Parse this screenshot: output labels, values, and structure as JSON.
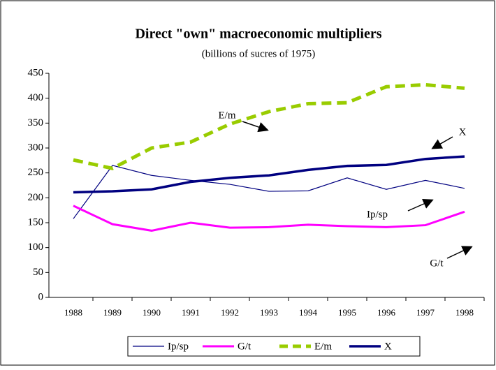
{
  "chart_data": {
    "type": "line",
    "title": "Direct \"own\" macroeconomic multipliers",
    "subtitle": "(billions of sucres of 1975)",
    "categories": [
      "1988",
      "1989",
      "1990",
      "1991",
      "1992",
      "1993",
      "1994",
      "1995",
      "1996",
      "1997",
      "1998"
    ],
    "series": [
      {
        "name": "Ip/sp",
        "color": "#000080",
        "line_width": 1.2,
        "dashed": false,
        "values": [
          158,
          265,
          245,
          235,
          227,
          213,
          214,
          240,
          217,
          235,
          219
        ]
      },
      {
        "name": "G/t",
        "color": "#ff00ff",
        "line_width": 3,
        "dashed": false,
        "values": [
          184,
          147,
          134,
          150,
          140,
          141,
          146,
          143,
          141,
          145,
          172
        ]
      },
      {
        "name": "E/m",
        "color": "#99cc00",
        "line_width": 5,
        "dashed": true,
        "values": [
          276,
          259,
          300,
          312,
          348,
          373,
          389,
          391,
          423,
          427,
          420
        ]
      },
      {
        "name": "X",
        "color": "#000080",
        "line_width": 3.5,
        "dashed": false,
        "values": [
          211,
          213,
          217,
          232,
          240,
          245,
          256,
          264,
          266,
          278,
          283
        ]
      }
    ],
    "annotations": [
      "E/m",
      "X",
      "Ip/sp",
      "G/t"
    ],
    "ylim": [
      0,
      450
    ],
    "yticks": [
      0,
      50,
      100,
      150,
      200,
      250,
      300,
      350,
      400,
      450
    ],
    "grid": false,
    "legend": "bottom"
  }
}
